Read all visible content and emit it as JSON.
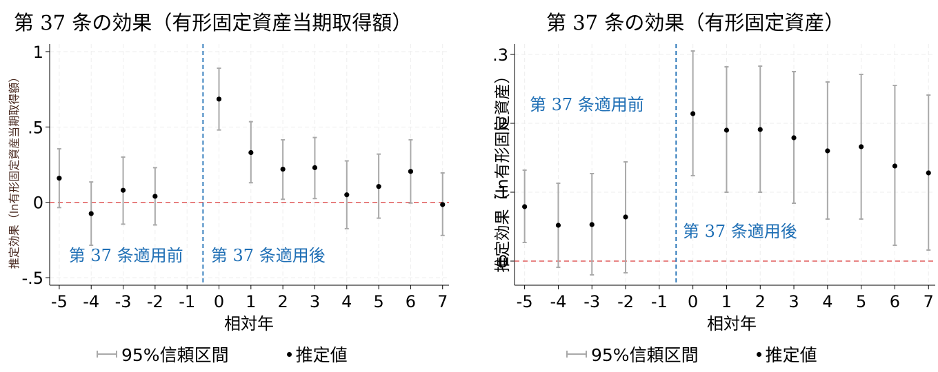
{
  "chart_data": [
    {
      "type": "scatter",
      "title": "第 37 条の効果（有形固定資産当期取得額）",
      "xlabel": "相対年",
      "ylabel": "推定効果（ln有形固定資産当期取得額）",
      "x": [
        -5,
        -4,
        -3,
        -2,
        -1,
        0,
        1,
        2,
        3,
        4,
        5,
        6,
        7
      ],
      "xticks": [
        "-5",
        "-4",
        "-3",
        "-2",
        "-1",
        "0",
        "1",
        "2",
        "3",
        "4",
        "5",
        "6",
        "7"
      ],
      "yticks": [
        {
          "value": 1,
          "label": "1"
        },
        {
          "value": 0.5,
          "label": ".5"
        },
        {
          "value": 0,
          "label": "0"
        },
        {
          "value": -0.5,
          "label": "-.5"
        }
      ],
      "ylim": [
        -0.55,
        1.05
      ],
      "grid": true,
      "reference_line_y": 0,
      "event_line_x": -0.5,
      "series": [
        {
          "name": "推定値",
          "points": [
            {
              "x": -5,
              "y": 0.16,
              "lo": -0.035,
              "hi": 0.355
            },
            {
              "x": -4,
              "y": -0.075,
              "lo": -0.285,
              "hi": 0.135
            },
            {
              "x": -3,
              "y": 0.08,
              "lo": -0.145,
              "hi": 0.3
            },
            {
              "x": -2,
              "y": 0.04,
              "lo": -0.15,
              "hi": 0.23
            },
            {
              "x": 0,
              "y": 0.685,
              "lo": 0.48,
              "hi": 0.89
            },
            {
              "x": 1,
              "y": 0.33,
              "lo": 0.13,
              "hi": 0.535
            },
            {
              "x": 2,
              "y": 0.22,
              "lo": 0.02,
              "hi": 0.415
            },
            {
              "x": 3,
              "y": 0.23,
              "lo": 0.025,
              "hi": 0.43
            },
            {
              "x": 4,
              "y": 0.05,
              "lo": -0.175,
              "hi": 0.275
            },
            {
              "x": 5,
              "y": 0.105,
              "lo": -0.105,
              "hi": 0.32
            },
            {
              "x": 6,
              "y": 0.205,
              "lo": -0.005,
              "hi": 0.415
            },
            {
              "x": 7,
              "y": -0.015,
              "lo": -0.22,
              "hi": 0.195
            }
          ]
        }
      ],
      "annotations": [
        {
          "text": "第 37 条適用前",
          "x": -4.7,
          "y": -0.39
        },
        {
          "text": "第 37 条適用後",
          "x": -0.25,
          "y": -0.39
        }
      ],
      "legend": {
        "placement": "bottom",
        "items": [
          "95%信頼区間",
          "推定値"
        ]
      },
      "colors": {
        "point": "#000000",
        "ci": "#a9a9a9",
        "zero_line": "#e05a5a",
        "event_line": "#1f6fb5",
        "annotation": "#1f6fb5",
        "grid": "#eeeeee"
      }
    },
    {
      "type": "scatter",
      "title": "第 37 条の効果（有形固定資産）",
      "xlabel": "相対年",
      "ylabel": "推定効果（ln有形固定資産）",
      "x": [
        -5,
        -4,
        -3,
        -2,
        -1,
        0,
        1,
        2,
        3,
        4,
        5,
        6,
        7
      ],
      "xticks": [
        "-5",
        "-4",
        "-3",
        "-2",
        "-1",
        "0",
        "1",
        "2",
        "3",
        "4",
        "5",
        "6",
        "7"
      ],
      "yticks": [
        {
          "value": 0.3,
          "label": ".3"
        },
        {
          "value": 0.2,
          "label": ".2"
        },
        {
          "value": 0.1,
          "label": ".1"
        },
        {
          "value": 0,
          "label": "0"
        }
      ],
      "ylim": [
        -0.035,
        0.315
      ],
      "grid": true,
      "reference_line_y": 0,
      "event_line_x": -0.5,
      "series": [
        {
          "name": "推定値",
          "points": [
            {
              "x": -5,
              "y": 0.079,
              "lo": 0.027,
              "hi": 0.132
            },
            {
              "x": -4,
              "y": 0.052,
              "lo": -0.009,
              "hi": 0.113
            },
            {
              "x": -3,
              "y": 0.053,
              "lo": -0.02,
              "hi": 0.127
            },
            {
              "x": -2,
              "y": 0.064,
              "lo": -0.017,
              "hi": 0.144
            },
            {
              "x": 0,
              "y": 0.214,
              "lo": 0.124,
              "hi": 0.305
            },
            {
              "x": 1,
              "y": 0.19,
              "lo": 0.1,
              "hi": 0.282
            },
            {
              "x": 2,
              "y": 0.191,
              "lo": 0.1,
              "hi": 0.283
            },
            {
              "x": 3,
              "y": 0.179,
              "lo": 0.084,
              "hi": 0.275
            },
            {
              "x": 4,
              "y": 0.16,
              "lo": 0.061,
              "hi": 0.26
            },
            {
              "x": 5,
              "y": 0.166,
              "lo": 0.061,
              "hi": 0.271
            },
            {
              "x": 6,
              "y": 0.138,
              "lo": 0.023,
              "hi": 0.255
            },
            {
              "x": 7,
              "y": 0.128,
              "lo": 0.016,
              "hi": 0.241
            }
          ]
        }
      ],
      "annotations": [
        {
          "text": "第 37 条適用前",
          "x": -4.85,
          "y": 0.219
        },
        {
          "text": "第 37 条適用後",
          "x": -0.3,
          "y": 0.035
        }
      ],
      "legend": {
        "placement": "bottom",
        "items": [
          "95%信頼区間",
          "推定値"
        ]
      },
      "colors": {
        "point": "#000000",
        "ci": "#a9a9a9",
        "zero_line": "#e05a5a",
        "event_line": "#1f6fb5",
        "annotation": "#1f6fb5",
        "grid": "#eeeeee"
      }
    }
  ]
}
